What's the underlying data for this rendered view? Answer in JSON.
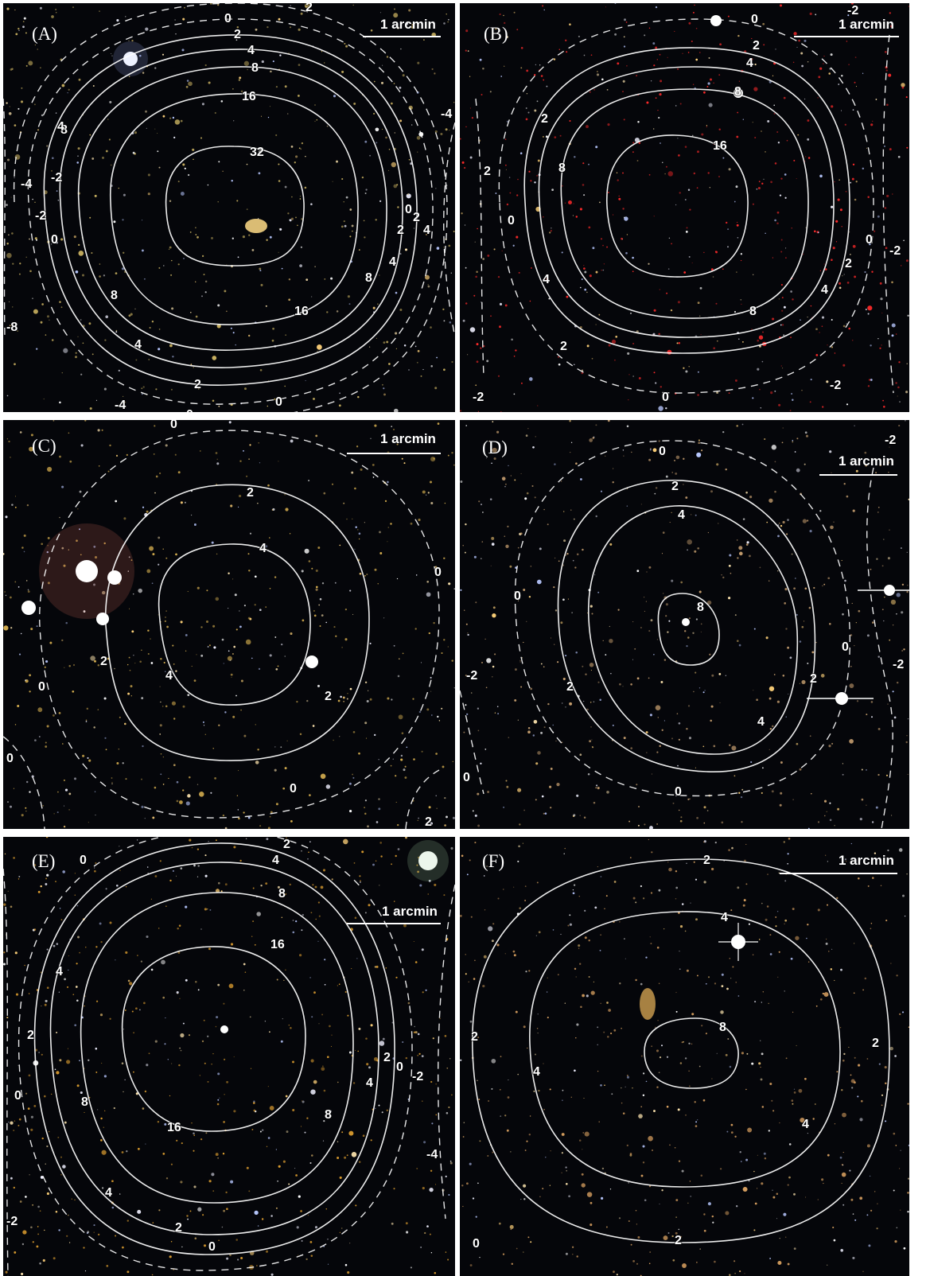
{
  "panels": [
    {
      "label": "(A)",
      "scale_label": "1 arcmin",
      "contour_labels": [
        "0",
        "2",
        "4",
        "8",
        "16",
        "32",
        "16",
        "8",
        "4",
        "2",
        "0",
        "4",
        "2",
        "0",
        "-2",
        "-4",
        "8",
        "4",
        "2",
        "0",
        "-2",
        "-4",
        "-8",
        "-4",
        "8",
        "4",
        "2",
        "0"
      ],
      "tint": "#c8b060"
    },
    {
      "label": "(B)",
      "scale_label": "1 arcmin",
      "contour_labels": [
        "0",
        "2",
        "4",
        "8",
        "16",
        "8",
        "4",
        "2",
        "0",
        "-2",
        "2",
        "4",
        "8",
        "2",
        "0",
        "-2",
        "2",
        "0",
        "-2",
        "-2"
      ],
      "tint": "#ff2a2a"
    },
    {
      "label": "(C)",
      "scale_label": "1 arcmin",
      "contour_labels": [
        "0",
        "2",
        "4",
        "4",
        "2",
        "2",
        "0",
        "0",
        "0",
        "0",
        "2"
      ],
      "tint": "#d8b050"
    },
    {
      "label": "(D)",
      "scale_label": "1 arcmin",
      "contour_labels": [
        "0",
        "2",
        "4",
        "8",
        "2",
        "4",
        "2",
        "0",
        "0",
        "0",
        "-2",
        "0",
        "-2",
        "-2"
      ],
      "tint": "#c8a070"
    },
    {
      "label": "(E)",
      "scale_label": "1 arcmin",
      "contour_labels": [
        "0",
        "2",
        "4",
        "8",
        "16",
        "16",
        "8",
        "4",
        "2",
        "0",
        "-2",
        "-4",
        "2",
        "4",
        "8",
        "0",
        "2",
        "4",
        "-2",
        "0"
      ],
      "tint": "#e0a030"
    },
    {
      "label": "(F)",
      "scale_label": "1 arcmin",
      "contour_labels": [
        "2",
        "4",
        "8",
        "2",
        "4",
        "4",
        "2",
        "2",
        "0"
      ],
      "tint": "#d8a060"
    }
  ]
}
